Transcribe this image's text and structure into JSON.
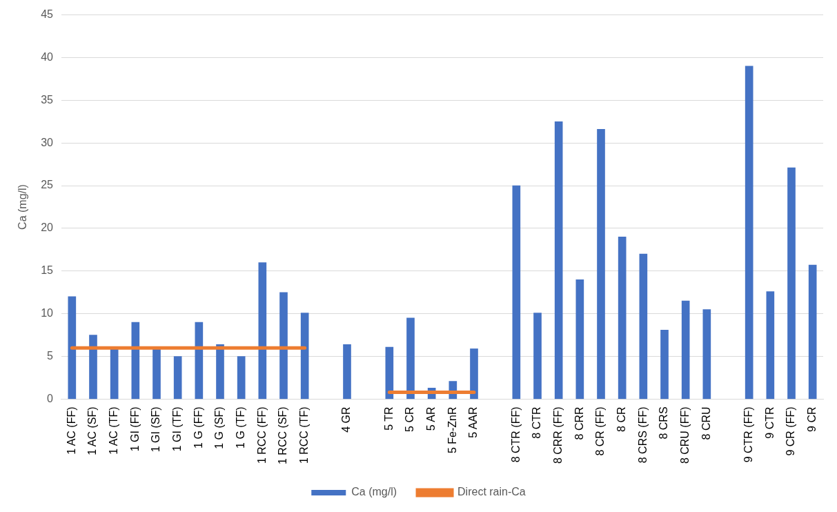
{
  "chart_data": {
    "type": "bar",
    "ylabel": "Ca (mg/l)",
    "categories": [
      "1 AC (FF)",
      "1 AC (SF)",
      "1 AC (TF)",
      "1 GI (FF)",
      "1 GI (SF)",
      "1 GI (TF)",
      "1 G (FF)",
      "1 G (SF)",
      "1 G (TF)",
      "1 RCC (FF)",
      "1 RCC (SF)",
      "1 RCC (TF)",
      null,
      "4 GR",
      null,
      "5 TR",
      "5 CR",
      "5 AR",
      "5 Fe-ZnR",
      "5 AAR",
      null,
      "8 CTR (FF)",
      "8 CTR",
      "8 CRR (FF)",
      "8 CRR",
      "8 CR (FF)",
      "8 CR",
      "8 CRS (FF)",
      "8 CRS",
      "8 CRU (FF)",
      "8 CRU",
      null,
      "9 CTR (FF)",
      "9 CTR",
      "9 CR (FF)",
      "9 CR"
    ],
    "series": [
      {
        "name": "Ca (mg/l)",
        "color": "#4472c4",
        "values": [
          12,
          7.5,
          6,
          9,
          6,
          5,
          9,
          6.4,
          5,
          16,
          12.5,
          10.1,
          null,
          6.4,
          null,
          6.1,
          9.5,
          1.3,
          2.1,
          5.9,
          null,
          25,
          10.1,
          32.5,
          14,
          31.6,
          19,
          17,
          8.1,
          11.5,
          10.5,
          null,
          39,
          12.6,
          27.1,
          15.7
        ]
      },
      {
        "name": "Direct rain-Ca",
        "type": "line",
        "color": "#ed7d31",
        "values": [
          6,
          6,
          6,
          6,
          6,
          6,
          6,
          6,
          6,
          6,
          6,
          6,
          null,
          null,
          null,
          0.8,
          0.8,
          0.8,
          0.8,
          0.8,
          null,
          null,
          null,
          null,
          null,
          null,
          null,
          null,
          null,
          null,
          null,
          null,
          null,
          null,
          null,
          null
        ]
      }
    ],
    "ylim": [
      0,
      45
    ],
    "yticks": [
      0,
      5,
      10,
      15,
      20,
      25,
      30,
      35,
      40,
      45
    ],
    "grid": "y",
    "legend": "bottom",
    "marker": "none",
    "line_style": "solid"
  }
}
